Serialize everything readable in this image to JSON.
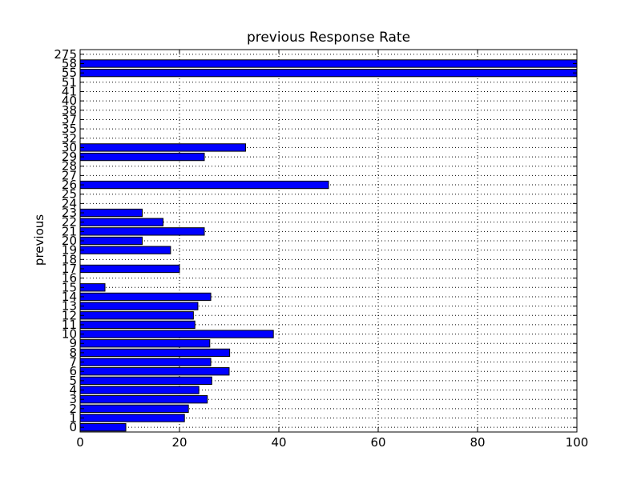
{
  "chart_data": {
    "type": "bar",
    "orientation": "horizontal",
    "title": "previous Response Rate",
    "xlabel": "",
    "ylabel": "previous",
    "xlim": [
      0,
      100
    ],
    "xticks": [
      "0",
      "20",
      "40",
      "60",
      "80",
      "100"
    ],
    "grid": true,
    "bar_color": "#0000ff",
    "categories": [
      "0",
      "1",
      "2",
      "3",
      "4",
      "5",
      "6",
      "7",
      "8",
      "9",
      "10",
      "11",
      "12",
      "13",
      "14",
      "15",
      "16",
      "17",
      "18",
      "19",
      "20",
      "21",
      "22",
      "23",
      "24",
      "25",
      "26",
      "27",
      "28",
      "29",
      "30",
      "32",
      "35",
      "37",
      "38",
      "40",
      "41",
      "51",
      "55",
      "58",
      "275"
    ],
    "values": [
      9.2,
      21.0,
      21.8,
      25.6,
      23.9,
      26.5,
      30.0,
      26.3,
      30.1,
      26.1,
      38.9,
      23.1,
      22.8,
      23.7,
      26.3,
      5.0,
      0,
      20.0,
      0,
      18.2,
      12.5,
      25.0,
      16.7,
      12.5,
      0,
      0,
      50.0,
      0,
      0,
      25.0,
      33.3,
      0,
      0,
      0,
      0,
      0,
      0,
      0,
      100,
      100,
      0
    ]
  }
}
